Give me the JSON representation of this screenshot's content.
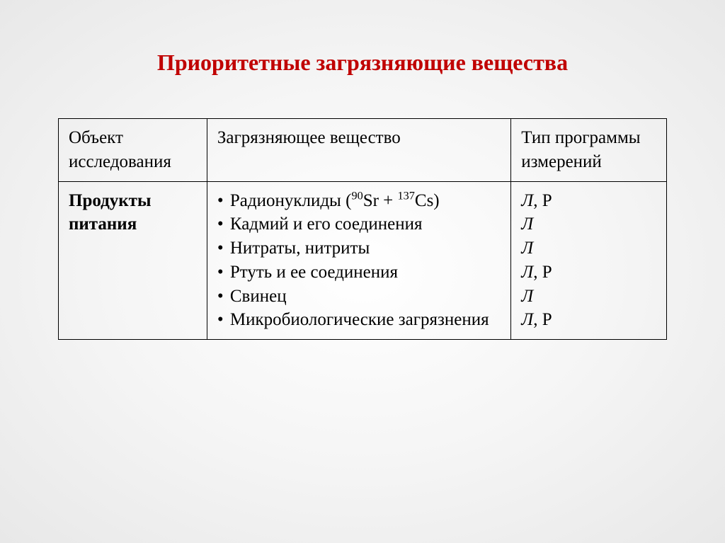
{
  "title": "Приоритетные загрязняющие вещества",
  "table": {
    "headers": {
      "col1": "Объект исследования",
      "col2": "Загрязняющее вещество",
      "col3": "Тип программы измерений"
    },
    "row": {
      "object": "Продукты питания",
      "pollutants": {
        "item1_prefix": "Радионуклиды (",
        "item1_sup1": "90",
        "item1_mid1": "Sr + ",
        "item1_sup2": "137",
        "item1_suffix": "Cs)",
        "item2": "Кадмий и его соединения",
        "item3": "Нитраты, нитриты",
        "item4": "Ртуть и ее соединения",
        "item5": "Свинец",
        "item6": "Микробиологические загрязнения"
      },
      "types": {
        "t1_a": "Л",
        "t1_b": ", Р",
        "t2": "Л",
        "t3": "Л",
        "t4_a": "Л",
        "t4_b": ", Р",
        "t5": "Л",
        "t6_a": "Л",
        "t6_b": ", Р"
      }
    }
  },
  "colors": {
    "title": "#c00000",
    "text": "#000000",
    "border": "#000000"
  }
}
